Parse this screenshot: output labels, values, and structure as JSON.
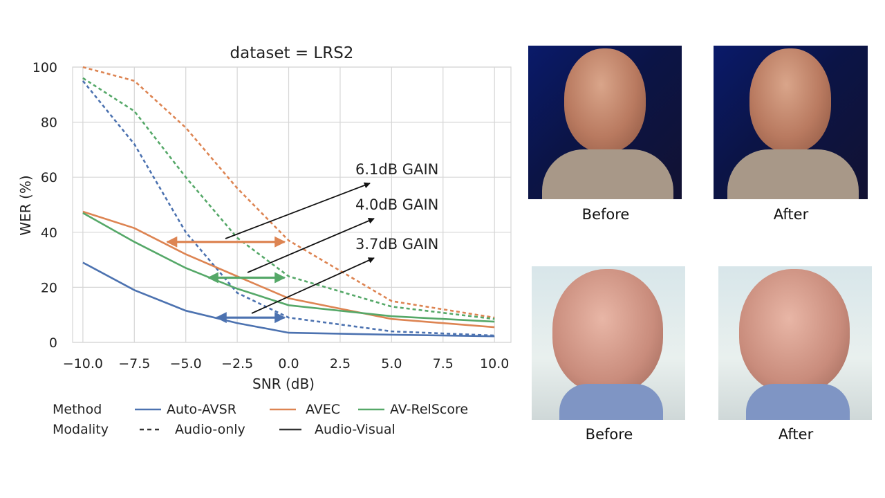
{
  "chart_data": {
    "type": "line",
    "title": "dataset = LRS2",
    "xlabel": "SNR (dB)",
    "ylabel": "WER (%)",
    "xlim": [
      -10.5,
      10.8
    ],
    "ylim": [
      0,
      100
    ],
    "x_ticks": [
      "−10.0",
      "−7.5",
      "−5.0",
      "−2.5",
      "0.0",
      "2.5",
      "5.0",
      "7.5",
      "10.0"
    ],
    "y_ticks": [
      "0",
      "20",
      "40",
      "60",
      "80",
      "100"
    ],
    "x_tick_values": [
      -10,
      -7.5,
      -5,
      -2.5,
      0,
      2.5,
      5,
      7.5,
      10
    ],
    "y_tick_values": [
      0,
      20,
      40,
      60,
      80,
      100
    ],
    "grid": true,
    "x": [
      -10,
      -7.5,
      -5,
      -2.5,
      0,
      5,
      10
    ],
    "series": [
      {
        "name": "Auto-AVSR",
        "modality": "Audio-only",
        "style": "dashed",
        "color": "#4c72b0",
        "values": [
          95,
          72,
          40,
          18,
          9,
          4,
          2.5
        ]
      },
      {
        "name": "Auto-AVSR",
        "modality": "Audio-Visual",
        "style": "solid",
        "color": "#4c72b0",
        "values": [
          29,
          19,
          11.5,
          7,
          3.5,
          2.8,
          2.2
        ]
      },
      {
        "name": "AVEC",
        "modality": "Audio-only",
        "style": "dashed",
        "color": "#dd8452",
        "values": [
          100,
          95,
          78,
          56,
          37,
          15,
          9
        ]
      },
      {
        "name": "AVEC",
        "modality": "Audio-Visual",
        "style": "solid",
        "color": "#dd8452",
        "values": [
          47.5,
          41.5,
          32,
          24,
          16,
          8.5,
          5.5
        ]
      },
      {
        "name": "AV-RelScore",
        "modality": "Audio-only",
        "style": "dashed",
        "color": "#55a868",
        "values": [
          96,
          84,
          60,
          38,
          24,
          13,
          8.5
        ]
      },
      {
        "name": "AV-RelScore",
        "modality": "Audio-Visual",
        "style": "solid",
        "color": "#55a868",
        "values": [
          47,
          36.5,
          27,
          19.5,
          13.5,
          9.5,
          7.5
        ]
      }
    ],
    "annotations": [
      {
        "text": "6.1dB GAIN",
        "color": "#dd8452",
        "y": 36.5,
        "x_from": -5.9,
        "x_to": -0.2
      },
      {
        "text": "4.0dB GAIN",
        "color": "#55a868",
        "y": 23.5,
        "x_from": -3.9,
        "x_to": -0.2
      },
      {
        "text": "3.7dB GAIN",
        "color": "#4c72b0",
        "y": 9,
        "x_from": -3.5,
        "x_to": -0.2
      }
    ],
    "legend": {
      "placement": "bottom",
      "method_label": "Method",
      "modality_label": "Modality",
      "methods": [
        {
          "name": "Auto-AVSR",
          "color": "#4c72b0"
        },
        {
          "name": "AVEC",
          "color": "#dd8452"
        },
        {
          "name": "AV-RelScore",
          "color": "#55a868"
        }
      ],
      "modalities": [
        {
          "name": "Audio-only",
          "style": "dashed"
        },
        {
          "name": "Audio-Visual",
          "style": "solid"
        }
      ]
    }
  },
  "photos": {
    "captions": [
      "Before",
      "After",
      "Before",
      "After"
    ]
  }
}
